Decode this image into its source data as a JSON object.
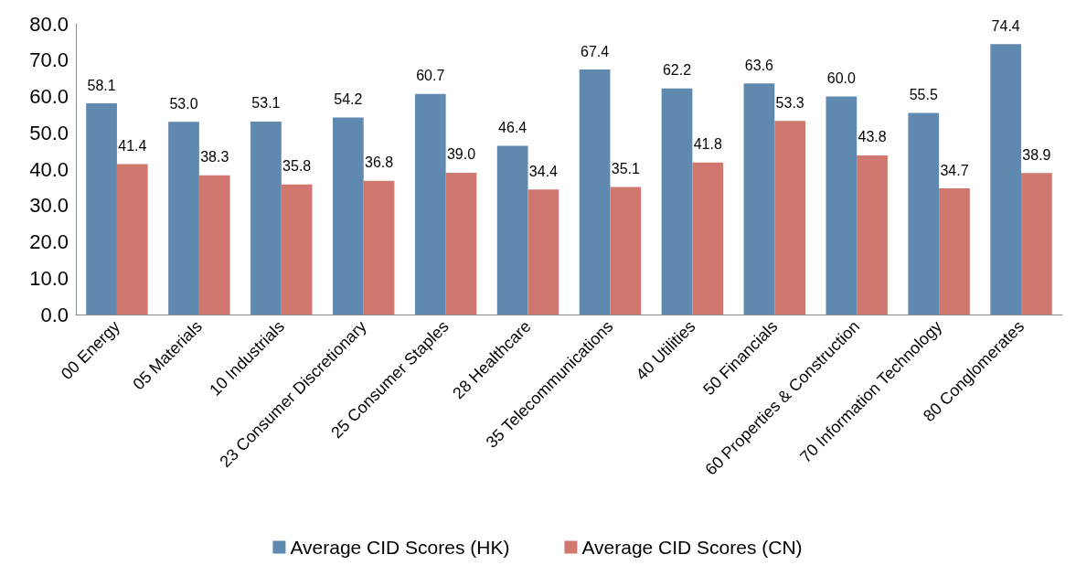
{
  "chart_data": {
    "type": "bar",
    "categories": [
      "00 Energy",
      "05 Materials",
      "10 Industrials",
      "23 Consumer Discretionary",
      "25 Consumer Staples",
      "28 Healthcare",
      "35 Telecommunications",
      "40 Utilities",
      "50 Financials",
      "60 Properties & Construction",
      "70 Information Technology",
      "80 Conglomerates"
    ],
    "series": [
      {
        "name": "Average CID Scores (HK)",
        "color": "#6089b0",
        "values": [
          58.1,
          53.0,
          53.1,
          54.2,
          60.7,
          46.4,
          67.4,
          62.2,
          63.6,
          60.0,
          55.5,
          74.4
        ],
        "value_labels": [
          "58.1",
          "53.0",
          "53.1",
          "54.2",
          "60.7",
          "46.4",
          "67.4",
          "62.2",
          "63.6",
          "60.0",
          "55.5",
          "74.4"
        ]
      },
      {
        "name": "Average CID Scores (CN)",
        "color": "#d07870",
        "values": [
          41.4,
          38.3,
          35.8,
          36.8,
          39.0,
          34.4,
          35.1,
          41.8,
          53.3,
          43.8,
          34.7,
          38.9
        ],
        "value_labels": [
          "41.4",
          "38.3",
          "35.8",
          "36.8",
          "39.0",
          "34.4",
          "35.1",
          "41.8",
          "53.3",
          "43.8",
          "34.7",
          "38.9"
        ]
      }
    ],
    "ylim": [
      0,
      80
    ],
    "yticks": [
      {
        "value": 0,
        "label": "0.0"
      },
      {
        "value": 10,
        "label": "10.0"
      },
      {
        "value": 20,
        "label": "20.0"
      },
      {
        "value": 30,
        "label": "30.0"
      },
      {
        "value": 40,
        "label": "40.0"
      },
      {
        "value": 50,
        "label": "50.0"
      },
      {
        "value": 60,
        "label": "60.0"
      },
      {
        "value": 70,
        "label": "70.0"
      },
      {
        "value": 80,
        "label": "80.0"
      }
    ],
    "grid": false,
    "legend": "bottom"
  }
}
